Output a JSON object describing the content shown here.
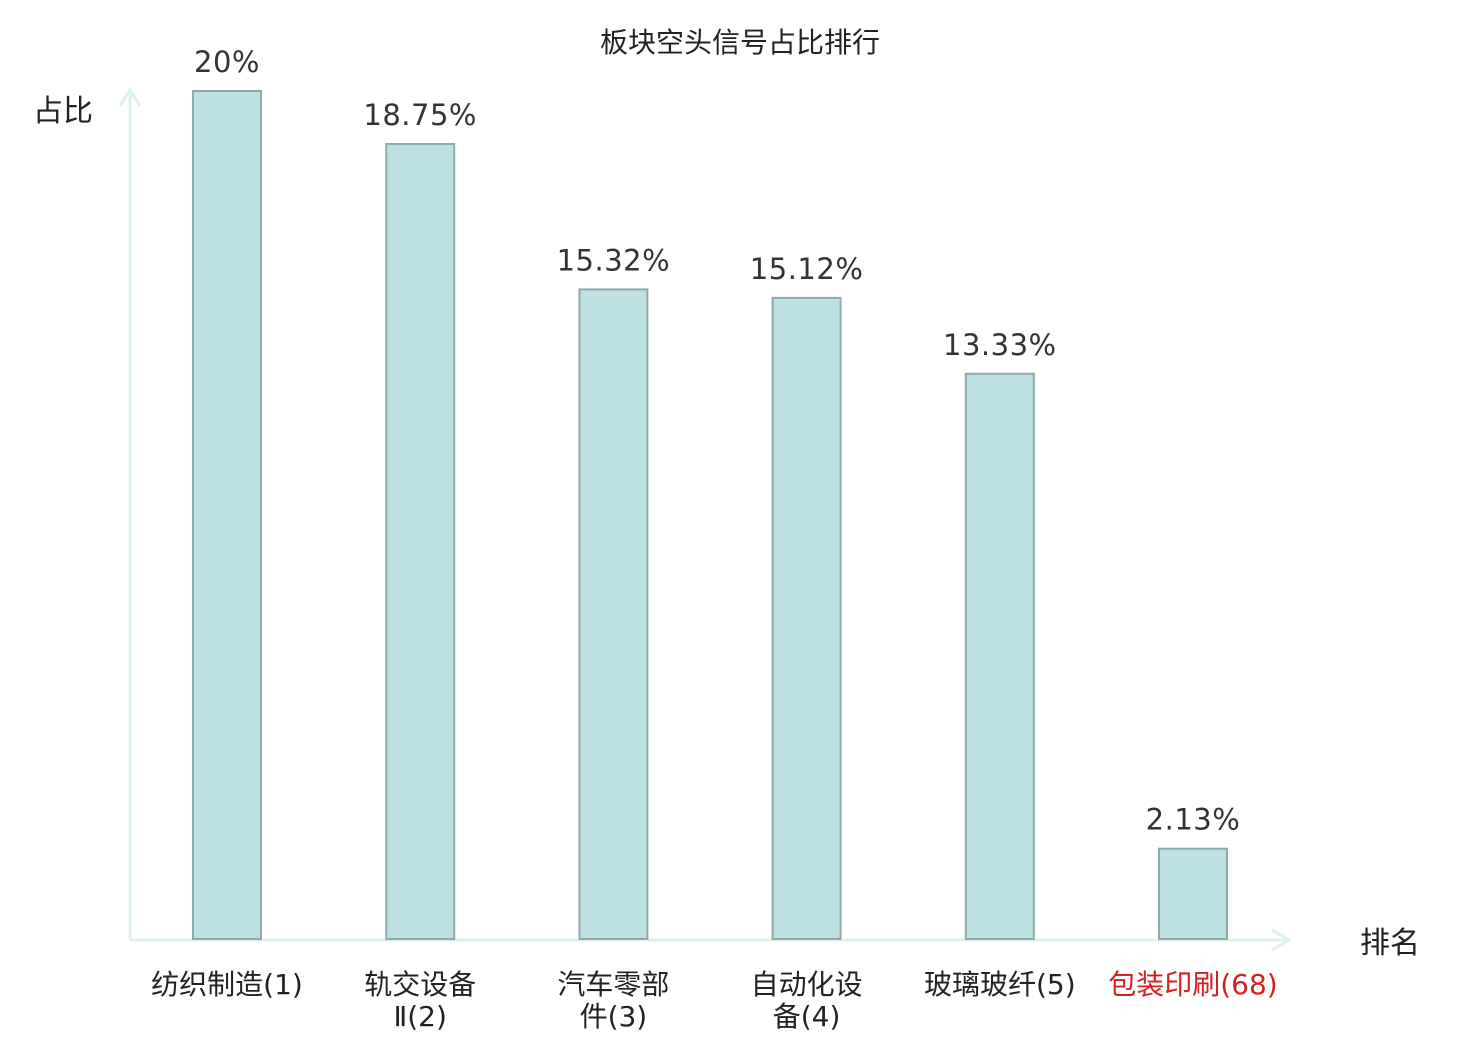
{
  "chart_data": {
    "type": "bar",
    "title": "板块空头信号占比排行",
    "xlabel": "排名",
    "ylabel": "占比",
    "ylim": [
      0,
      20
    ],
    "grid": false,
    "legend": "none",
    "categories": [
      {
        "lines": [
          "纺织制造(1)"
        ],
        "highlight": false
      },
      {
        "lines": [
          "轨交设备",
          "Ⅱ(2)"
        ],
        "highlight": false
      },
      {
        "lines": [
          "汽车零部",
          "件(3)"
        ],
        "highlight": false
      },
      {
        "lines": [
          "自动化设",
          "备(4)"
        ],
        "highlight": false
      },
      {
        "lines": [
          "玻璃玻纤(5)"
        ],
        "highlight": false
      },
      {
        "lines": [
          "包装印刷(68)"
        ],
        "highlight": true
      }
    ],
    "values": [
      20,
      18.75,
      15.32,
      15.12,
      13.33,
      2.13
    ],
    "value_labels": [
      "20%",
      "18.75%",
      "15.32%",
      "15.12%",
      "13.33%",
      "2.13%"
    ],
    "colors": {
      "bar_fill": "#bde0e3",
      "bar_stroke": "#8fa9ab",
      "axis": "#ddf1ef",
      "highlight_text": "#d42020"
    }
  }
}
